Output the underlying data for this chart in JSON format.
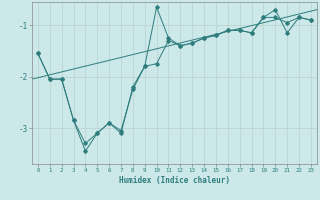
{
  "xlabel": "Humidex (Indice chaleur)",
  "bg_color": "#cce8e8",
  "grid_color": "#b8d0d0",
  "line_color": "#2e7d7d",
  "xlim": [
    -0.5,
    23.5
  ],
  "ylim": [
    -3.7,
    -0.55
  ],
  "yticks": [
    -3,
    -2,
    -1
  ],
  "xticks": [
    0,
    1,
    2,
    3,
    4,
    5,
    6,
    7,
    8,
    9,
    10,
    11,
    12,
    13,
    14,
    15,
    16,
    17,
    18,
    19,
    20,
    21,
    22,
    23
  ],
  "line1_x": [
    0,
    1,
    2,
    3,
    4,
    5,
    6,
    7,
    8,
    9,
    10,
    11,
    12,
    13,
    14,
    15,
    16,
    17,
    18,
    19,
    20,
    21,
    22,
    23
  ],
  "line1_y": [
    -1.55,
    -2.05,
    -2.05,
    -2.85,
    -3.3,
    -3.1,
    -2.9,
    -3.05,
    -2.25,
    -1.8,
    -1.75,
    -1.3,
    -1.4,
    -1.35,
    -1.25,
    -1.2,
    -1.1,
    -1.1,
    -1.15,
    -0.85,
    -0.85,
    -0.95,
    -0.85,
    -0.9
  ],
  "line2_x": [
    0,
    1,
    2,
    3,
    4,
    5,
    6,
    7,
    8,
    9,
    10,
    11,
    12,
    13,
    14,
    15,
    16,
    17,
    18,
    19,
    20,
    21,
    22,
    23
  ],
  "line2_y": [
    -1.55,
    -2.05,
    -2.05,
    -2.85,
    -3.45,
    -3.1,
    -2.9,
    -3.1,
    -2.2,
    -1.8,
    -0.65,
    -1.25,
    -1.4,
    -1.35,
    -1.25,
    -1.2,
    -1.1,
    -1.1,
    -1.15,
    -0.85,
    -0.7,
    -1.15,
    -0.85,
    -0.9
  ],
  "line3_x": [
    -0.5,
    23.5
  ],
  "line3_y": [
    -2.05,
    -0.7
  ]
}
